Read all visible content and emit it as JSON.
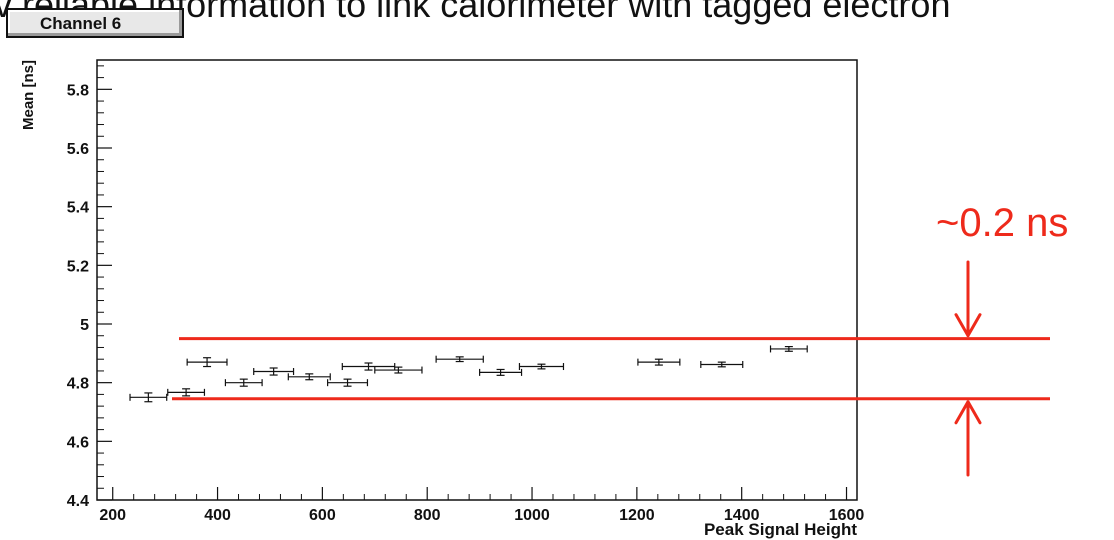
{
  "slide": {
    "heading": "v reliable information to link calorimeter with tagged electron"
  },
  "panel": {
    "channel_label": "Channel 6"
  },
  "annotation": {
    "text": "~0.2 ns",
    "color": "#ee2a1b"
  },
  "chart_data": {
    "type": "scatter",
    "xlabel": "Peak Signal Height",
    "ylabel": "Mean [ns]",
    "xlim": [
      170,
      1620
    ],
    "ylim": [
      4.4,
      5.9
    ],
    "x_ticks": [
      200,
      400,
      600,
      800,
      1000,
      1200,
      1400,
      1600
    ],
    "y_ticks": [
      4.4,
      4.6,
      4.8,
      5,
      5.2,
      5.4,
      5.6,
      5.8
    ],
    "y_tick_labels": [
      "4.4",
      "4.6",
      "4.8",
      "5",
      "5.2",
      "5.4",
      "5.6",
      "5.8"
    ],
    "grid": false,
    "points": [
      {
        "x": 268,
        "y": 4.75,
        "xerr": 35,
        "yerr": 0.015
      },
      {
        "x": 340,
        "y": 4.767,
        "xerr": 35,
        "yerr": 0.012
      },
      {
        "x": 380,
        "y": 4.87,
        "xerr": 38,
        "yerr": 0.015
      },
      {
        "x": 450,
        "y": 4.8,
        "xerr": 35,
        "yerr": 0.012
      },
      {
        "x": 507,
        "y": 4.838,
        "xerr": 38,
        "yerr": 0.012
      },
      {
        "x": 575,
        "y": 4.82,
        "xerr": 40,
        "yerr": 0.01
      },
      {
        "x": 648,
        "y": 4.8,
        "xerr": 38,
        "yerr": 0.012
      },
      {
        "x": 688,
        "y": 4.855,
        "xerr": 50,
        "yerr": 0.012
      },
      {
        "x": 745,
        "y": 4.843,
        "xerr": 45,
        "yerr": 0.01
      },
      {
        "x": 862,
        "y": 4.88,
        "xerr": 45,
        "yerr": 0.008
      },
      {
        "x": 940,
        "y": 4.835,
        "xerr": 40,
        "yerr": 0.01
      },
      {
        "x": 1018,
        "y": 4.855,
        "xerr": 42,
        "yerr": 0.008
      },
      {
        "x": 1242,
        "y": 4.87,
        "xerr": 40,
        "yerr": 0.01
      },
      {
        "x": 1362,
        "y": 4.862,
        "xerr": 40,
        "yerr": 0.008
      },
      {
        "x": 1490,
        "y": 4.915,
        "xerr": 35,
        "yerr": 0.008
      }
    ],
    "reference_lines": [
      4.95,
      4.745
    ]
  }
}
